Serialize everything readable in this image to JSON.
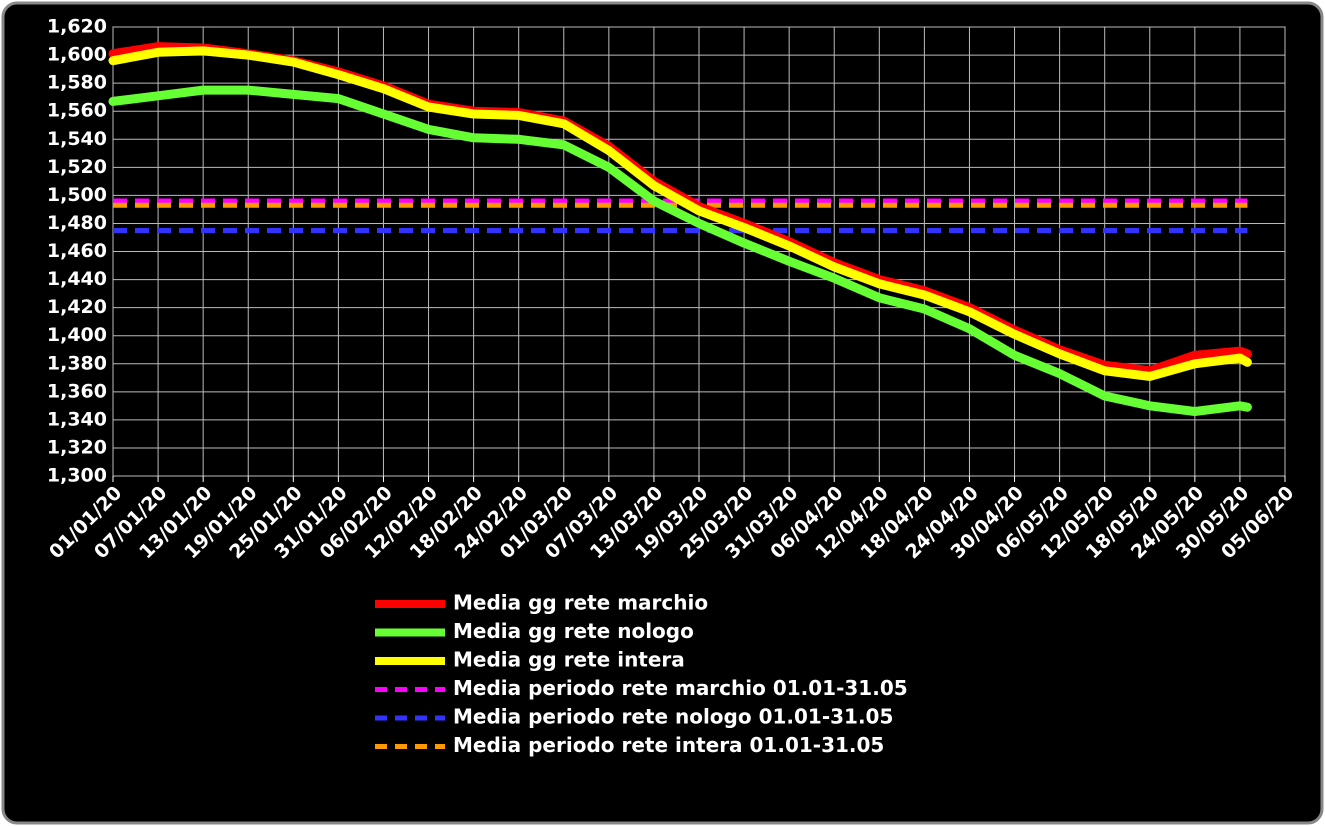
{
  "chart_data": {
    "type": "line",
    "x": [
      "01/01/20",
      "07/01/20",
      "13/01/20",
      "19/01/20",
      "25/01/20",
      "31/01/20",
      "06/02/20",
      "12/02/20",
      "18/02/20",
      "24/02/20",
      "01/03/20",
      "07/03/20",
      "13/03/20",
      "19/03/20",
      "25/03/20",
      "31/03/20",
      "06/04/20",
      "12/04/20",
      "18/04/20",
      "24/04/20",
      "30/04/20",
      "06/05/20",
      "12/05/20",
      "18/05/20",
      "24/05/20",
      "30/05/20",
      "31/05/20"
    ],
    "series": [
      {
        "name": "Media gg rete marchio",
        "color": "#ff0000",
        "values": [
          1601,
          1606,
          1605,
          1601,
          1596,
          1588,
          1578,
          1565,
          1560,
          1559,
          1553,
          1535,
          1510,
          1492,
          1480,
          1467,
          1452,
          1440,
          1432,
          1420,
          1404,
          1390,
          1379,
          1375,
          1386,
          1389,
          1387
        ]
      },
      {
        "name": "Media gg rete nologo",
        "color": "#66ff33",
        "values": [
          1567,
          1571,
          1575,
          1575,
          1572,
          1569,
          1558,
          1547,
          1541,
          1540,
          1536,
          1520,
          1496,
          1480,
          1466,
          1453,
          1441,
          1427,
          1419,
          1405,
          1386,
          1373,
          1357,
          1350,
          1346,
          1350,
          1349
        ]
      },
      {
        "name": "Media gg rete intera",
        "color": "#ffff00",
        "values": [
          1596,
          1602,
          1603,
          1600,
          1595,
          1586,
          1576,
          1563,
          1558,
          1557,
          1551,
          1532,
          1507,
          1489,
          1477,
          1464,
          1449,
          1437,
          1429,
          1417,
          1401,
          1387,
          1375,
          1371,
          1380,
          1384,
          1381
        ]
      },
      {
        "name": "Media periodo rete marchio 01.01-31.05",
        "color": "#ff00ff",
        "dashed": true,
        "value": 1496
      },
      {
        "name": "Media periodo rete nologo 01.01-31.05",
        "color": "#3333ff",
        "dashed": true,
        "value": 1475
      },
      {
        "name": "Media periodo rete intera 01.01-31.05",
        "color": "#ff9900",
        "dashed": true,
        "value": 1493
      }
    ],
    "xlim": [
      "01/01/20",
      "05/06/20"
    ],
    "xticks": [
      "01/01/20",
      "07/01/20",
      "13/01/20",
      "19/01/20",
      "25/01/20",
      "31/01/20",
      "06/02/20",
      "12/02/20",
      "18/02/20",
      "24/02/20",
      "01/03/20",
      "07/03/20",
      "13/03/20",
      "19/03/20",
      "25/03/20",
      "31/03/20",
      "06/04/20",
      "12/04/20",
      "18/04/20",
      "24/04/20",
      "30/04/20",
      "06/05/20",
      "12/05/20",
      "18/05/20",
      "24/05/20",
      "30/05/20",
      "05/06/20"
    ],
    "ylim": [
      1300,
      1620
    ],
    "yticks": [
      {
        "value": 1300,
        "label": "1,300"
      },
      {
        "value": 1320,
        "label": "1,320"
      },
      {
        "value": 1340,
        "label": "1,340"
      },
      {
        "value": 1360,
        "label": "1,360"
      },
      {
        "value": 1380,
        "label": "1,380"
      },
      {
        "value": 1400,
        "label": "1,400"
      },
      {
        "value": 1420,
        "label": "1,420"
      },
      {
        "value": 1440,
        "label": "1,440"
      },
      {
        "value": 1460,
        "label": "1,460"
      },
      {
        "value": 1480,
        "label": "1,480"
      },
      {
        "value": 1500,
        "label": "1,500"
      },
      {
        "value": 1520,
        "label": "1,520"
      },
      {
        "value": 1540,
        "label": "1,540"
      },
      {
        "value": 1560,
        "label": "1,560"
      },
      {
        "value": 1580,
        "label": "1,580"
      },
      {
        "value": 1600,
        "label": "1,600"
      },
      {
        "value": 1620,
        "label": "1,620"
      }
    ],
    "grid": true
  }
}
